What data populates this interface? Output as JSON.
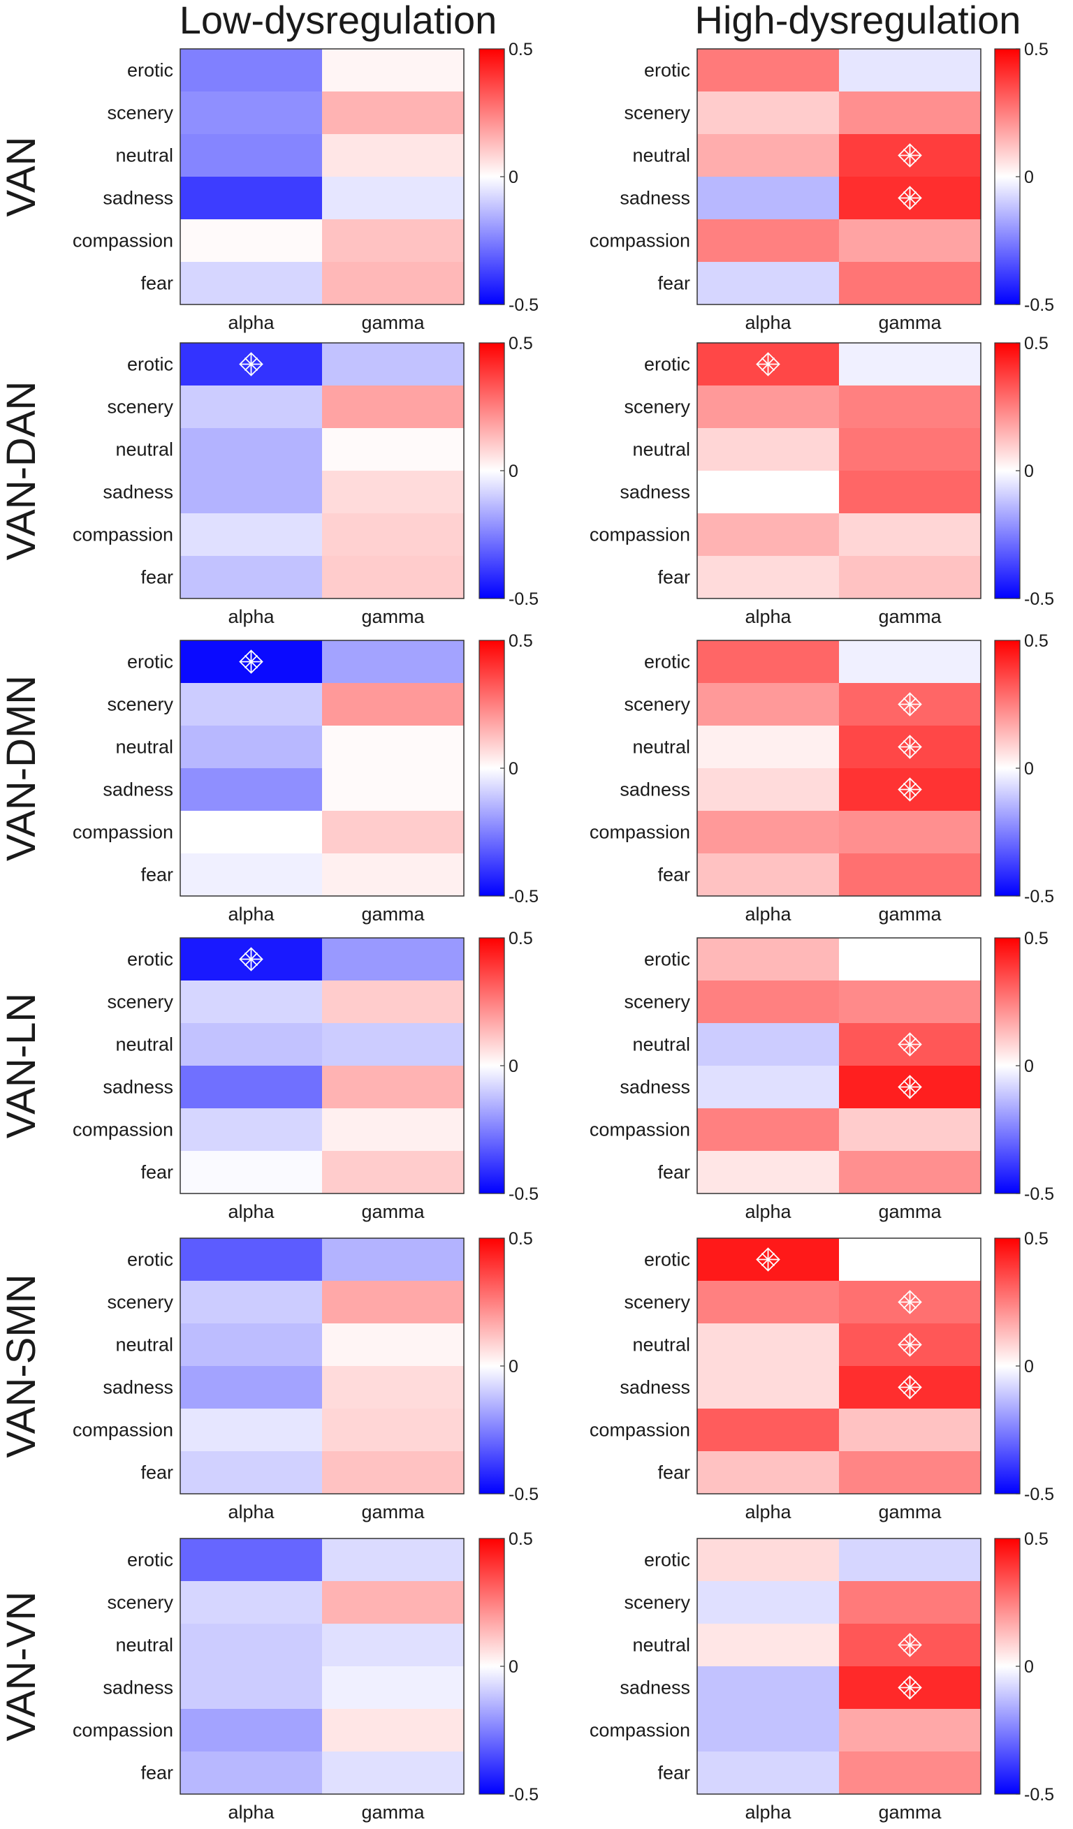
{
  "chart_data": {
    "type": "heatmap",
    "column_titles": [
      "Low-dysregulation",
      "High-dysregulation"
    ],
    "row_titles": [
      "VAN",
      "VAN-DAN",
      "VAN-DMN",
      "VAN-LN",
      "VAN-SMN",
      "VAN-VN"
    ],
    "categories": [
      "erotic",
      "scenery",
      "neutral",
      "sadness",
      "compassion",
      "fear"
    ],
    "bands": [
      "alpha",
      "gamma"
    ],
    "colorbar": {
      "range": [
        -0.5,
        0.5
      ],
      "ticks": [
        0.5,
        0,
        -0.5
      ],
      "tick_labels": [
        "0.5",
        "0",
        "-0.5"
      ],
      "colormap": "blue-white-red"
    },
    "significance_marker": "asterisk-in-diamond",
    "heatmaps": [
      {
        "network": "VAN",
        "group": "Low-dysregulation",
        "values": [
          [
            -0.25,
            0.02
          ],
          [
            -0.22,
            0.15
          ],
          [
            -0.24,
            0.05
          ],
          [
            -0.38,
            -0.05
          ],
          [
            0.01,
            0.12
          ],
          [
            -0.08,
            0.14
          ]
        ],
        "significant": []
      },
      {
        "network": "VAN",
        "group": "High-dysregulation",
        "values": [
          [
            0.26,
            -0.05
          ],
          [
            0.1,
            0.22
          ],
          [
            0.16,
            0.38
          ],
          [
            -0.14,
            0.41
          ],
          [
            0.25,
            0.18
          ],
          [
            -0.08,
            0.27
          ]
        ],
        "significant": [
          [
            2,
            1
          ],
          [
            3,
            1
          ]
        ]
      },
      {
        "network": "VAN-DAN",
        "group": "Low-dysregulation",
        "values": [
          [
            -0.4,
            -0.12
          ],
          [
            -0.1,
            0.18
          ],
          [
            -0.15,
            0.01
          ],
          [
            -0.15,
            0.07
          ],
          [
            -0.06,
            0.09
          ],
          [
            -0.12,
            0.1
          ]
        ],
        "significant": [
          [
            0,
            0
          ]
        ]
      },
      {
        "network": "VAN-DAN",
        "group": "High-dysregulation",
        "values": [
          [
            0.36,
            -0.03
          ],
          [
            0.2,
            0.25
          ],
          [
            0.08,
            0.27
          ],
          [
            0.0,
            0.3
          ],
          [
            0.15,
            0.08
          ],
          [
            0.07,
            0.12
          ]
        ],
        "significant": [
          [
            0,
            0
          ]
        ]
      },
      {
        "network": "VAN-DMN",
        "group": "Low-dysregulation",
        "values": [
          [
            -0.48,
            -0.18
          ],
          [
            -0.1,
            0.2
          ],
          [
            -0.14,
            0.01
          ],
          [
            -0.22,
            0.01
          ],
          [
            0.0,
            0.1
          ],
          [
            -0.03,
            0.03
          ]
        ],
        "significant": [
          [
            0,
            0
          ]
        ]
      },
      {
        "network": "VAN-DMN",
        "group": "High-dysregulation",
        "values": [
          [
            0.3,
            -0.03
          ],
          [
            0.2,
            0.3
          ],
          [
            0.03,
            0.36
          ],
          [
            0.07,
            0.4
          ],
          [
            0.2,
            0.22
          ],
          [
            0.12,
            0.28
          ]
        ],
        "significant": [
          [
            1,
            1
          ],
          [
            2,
            1
          ],
          [
            3,
            1
          ]
        ]
      },
      {
        "network": "VAN-LN",
        "group": "Low-dysregulation",
        "values": [
          [
            -0.45,
            -0.2
          ],
          [
            -0.08,
            0.1
          ],
          [
            -0.12,
            -0.1
          ],
          [
            -0.28,
            0.15
          ],
          [
            -0.08,
            0.03
          ],
          [
            -0.01,
            0.1
          ]
        ],
        "significant": [
          [
            0,
            0
          ]
        ]
      },
      {
        "network": "VAN-LN",
        "group": "High-dysregulation",
        "values": [
          [
            0.14,
            0.0
          ],
          [
            0.25,
            0.23
          ],
          [
            -0.1,
            0.33
          ],
          [
            -0.06,
            0.44
          ],
          [
            0.25,
            0.1
          ],
          [
            0.05,
            0.22
          ]
        ],
        "significant": [
          [
            2,
            1
          ],
          [
            3,
            1
          ]
        ]
      },
      {
        "network": "VAN-SMN",
        "group": "Low-dysregulation",
        "values": [
          [
            -0.32,
            -0.15
          ],
          [
            -0.1,
            0.17
          ],
          [
            -0.13,
            0.02
          ],
          [
            -0.18,
            0.07
          ],
          [
            -0.05,
            0.08
          ],
          [
            -0.09,
            0.12
          ]
        ],
        "significant": []
      },
      {
        "network": "VAN-SMN",
        "group": "High-dysregulation",
        "values": [
          [
            0.45,
            0.0
          ],
          [
            0.25,
            0.28
          ],
          [
            0.07,
            0.33
          ],
          [
            0.07,
            0.41
          ],
          [
            0.32,
            0.12
          ],
          [
            0.12,
            0.24
          ]
        ],
        "significant": [
          [
            0,
            0
          ],
          [
            1,
            1
          ],
          [
            2,
            1
          ],
          [
            3,
            1
          ]
        ]
      },
      {
        "network": "VAN-VN",
        "group": "Low-dysregulation",
        "values": [
          [
            -0.3,
            -0.07
          ],
          [
            -0.08,
            0.15
          ],
          [
            -0.1,
            -0.06
          ],
          [
            -0.1,
            -0.03
          ],
          [
            -0.18,
            0.05
          ],
          [
            -0.14,
            -0.06
          ]
        ],
        "significant": []
      },
      {
        "network": "VAN-VN",
        "group": "High-dysregulation",
        "values": [
          [
            0.07,
            -0.08
          ],
          [
            -0.06,
            0.26
          ],
          [
            0.05,
            0.33
          ],
          [
            -0.12,
            0.42
          ],
          [
            -0.12,
            0.17
          ],
          [
            -0.08,
            0.23
          ]
        ],
        "significant": [
          [
            2,
            1
          ],
          [
            3,
            1
          ]
        ]
      }
    ]
  }
}
